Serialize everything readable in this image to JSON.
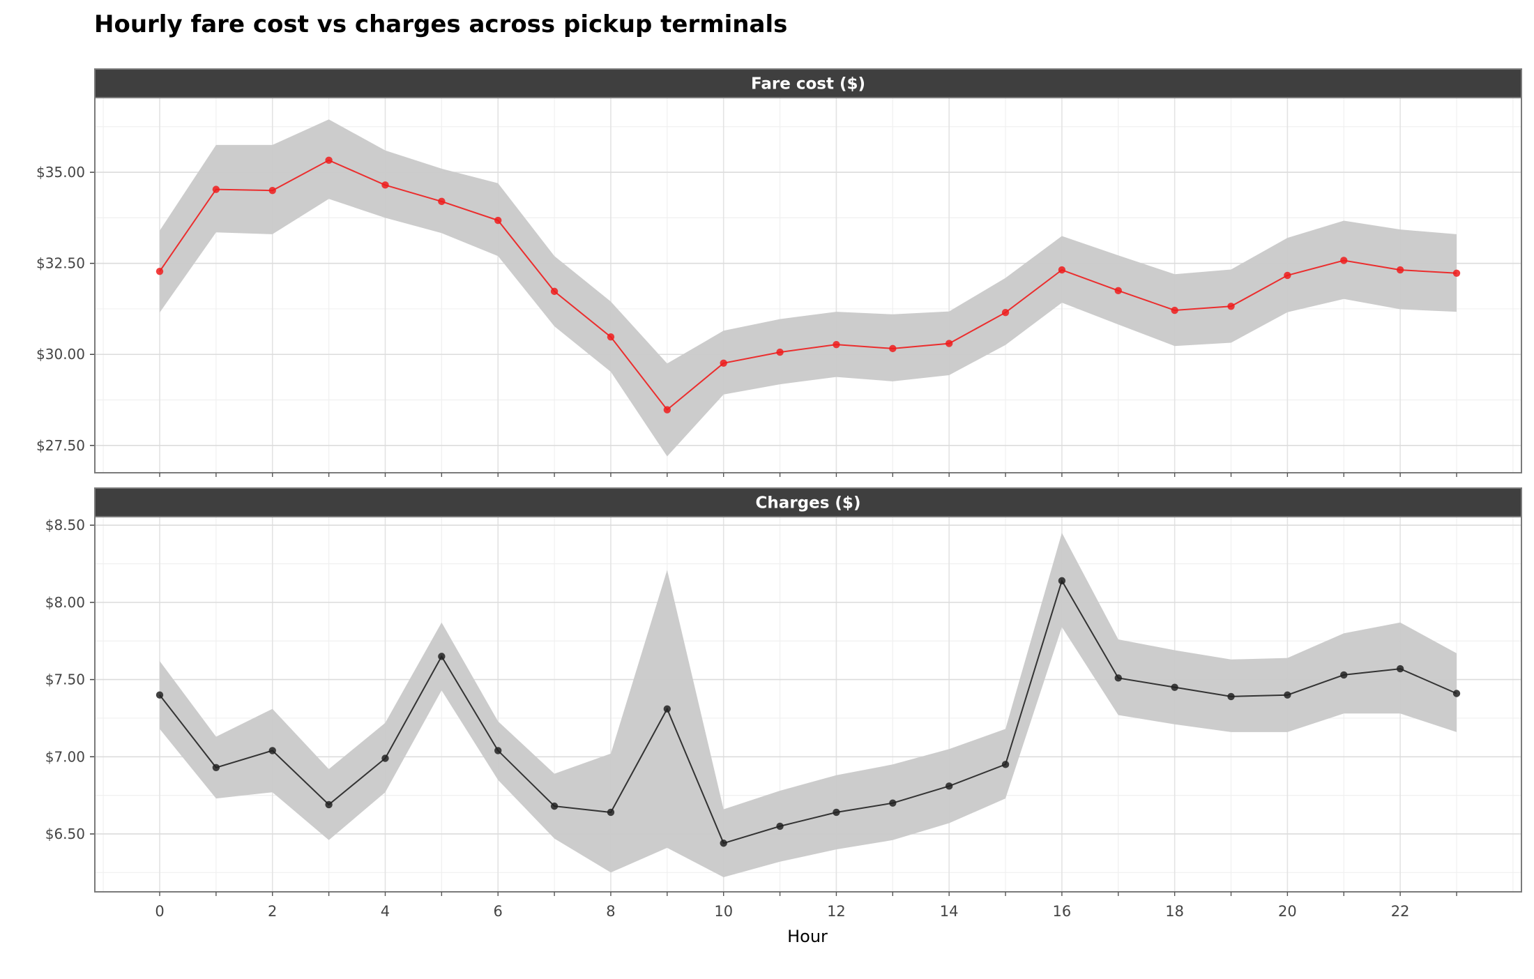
{
  "title": "Hourly fare cost vs charges across pickup terminals",
  "chart_data": {
    "type": "line",
    "title": "Hourly fare cost vs charges across pickup terminals",
    "xlabel": "Hour",
    "x": [
      0,
      1,
      2,
      3,
      4,
      5,
      6,
      7,
      8,
      9,
      10,
      11,
      12,
      13,
      14,
      15,
      16,
      17,
      18,
      19,
      20,
      21,
      22,
      23
    ],
    "x_ticks": [
      0,
      2,
      4,
      6,
      8,
      10,
      12,
      14,
      16,
      18,
      20,
      22
    ],
    "x_tick_labels": [
      "0",
      "2",
      "4",
      "6",
      "8",
      "10",
      "12",
      "14",
      "16",
      "18",
      "20",
      "22"
    ],
    "xlim": [
      -1.15,
      24.15
    ],
    "grid": true,
    "panels": [
      {
        "strip": "Fare cost ($)",
        "color": "#ee1c1c",
        "band_color": "#c9c9c9",
        "ylim": [
          26.75,
          37.05
        ],
        "y_ticks": [
          27.5,
          30.0,
          32.5,
          35.0
        ],
        "y_tick_labels": [
          "$27.50",
          "$30.00",
          "$32.50",
          "$35.00"
        ],
        "values": [
          32.28,
          34.53,
          34.5,
          35.33,
          34.65,
          34.2,
          33.68,
          31.73,
          30.48,
          28.48,
          29.76,
          30.06,
          30.27,
          30.16,
          30.3,
          31.15,
          32.32,
          31.75,
          31.21,
          31.32,
          32.17,
          32.58,
          32.32,
          32.23
        ],
        "upper": [
          33.4,
          35.75,
          35.75,
          36.45,
          35.6,
          35.1,
          34.7,
          32.7,
          31.45,
          29.75,
          30.65,
          30.97,
          31.17,
          31.1,
          31.18,
          32.1,
          33.25,
          32.72,
          32.2,
          32.33,
          33.2,
          33.67,
          33.43,
          33.3
        ],
        "lower": [
          31.15,
          33.35,
          33.3,
          34.27,
          33.75,
          33.33,
          32.7,
          30.77,
          29.52,
          27.2,
          28.9,
          29.18,
          29.38,
          29.26,
          29.43,
          30.26,
          31.42,
          30.82,
          30.23,
          30.32,
          31.16,
          31.52,
          31.24,
          31.17
        ]
      },
      {
        "strip": "Charges ($)",
        "color": "#222222",
        "band_color": "#c9c9c9",
        "ylim": [
          6.125,
          8.555
        ],
        "y_ticks": [
          6.5,
          7.0,
          7.5,
          8.0,
          8.5
        ],
        "y_tick_labels": [
          "$6.50",
          "$7.00",
          "$7.50",
          "$8.00",
          "$8.50"
        ],
        "values": [
          7.4,
          6.93,
          7.04,
          6.69,
          6.99,
          7.65,
          7.04,
          6.68,
          6.64,
          7.31,
          6.44,
          6.55,
          6.64,
          6.7,
          6.81,
          6.95,
          8.14,
          7.51,
          7.45,
          7.39,
          7.4,
          7.53,
          7.57,
          7.41
        ],
        "upper": [
          7.62,
          7.13,
          7.31,
          6.92,
          7.22,
          7.87,
          7.23,
          6.89,
          7.02,
          8.21,
          6.66,
          6.78,
          6.88,
          6.95,
          7.05,
          7.18,
          8.45,
          7.76,
          7.69,
          7.63,
          7.64,
          7.8,
          7.87,
          7.67
        ],
        "lower": [
          7.18,
          6.73,
          6.77,
          6.46,
          6.77,
          7.43,
          6.85,
          6.47,
          6.25,
          6.41,
          6.22,
          6.32,
          6.4,
          6.46,
          6.57,
          6.73,
          7.84,
          7.27,
          7.21,
          7.16,
          7.16,
          7.28,
          7.28,
          7.16
        ]
      }
    ]
  }
}
